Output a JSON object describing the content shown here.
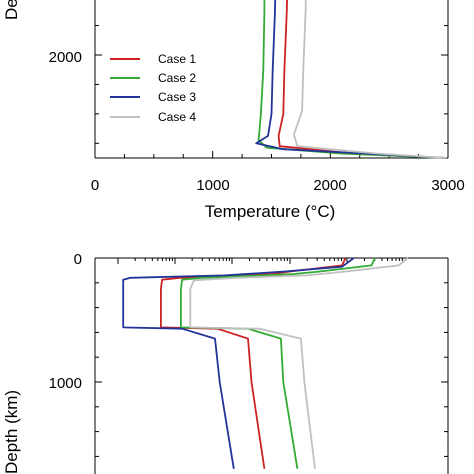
{
  "colors": {
    "case1": "#cc2222",
    "case2": "#33aa33",
    "case3": "#223399",
    "case4": "#c0c0c0"
  },
  "chart_data": [
    {
      "type": "line",
      "panel": "top",
      "xlabel": "Temperature (°C)",
      "ylabel": "Depth",
      "xlim": [
        0,
        3000
      ],
      "x_ticks": [
        "0",
        "1000",
        "2000",
        "3000"
      ],
      "y_ticks": [
        "2000"
      ],
      "legend_position": "center-left",
      "series": [
        {
          "name": "Case 1",
          "color_key": "case1",
          "points": [
            [
              1640,
              2920
            ],
            [
              1640,
              2700
            ],
            [
              1630,
              2300
            ],
            [
              1610,
              1900
            ],
            [
              1600,
              1600
            ],
            [
              1560,
              1450
            ],
            [
              1570,
              1380
            ],
            [
              2200,
              1330
            ],
            [
              2990,
              1300
            ]
          ]
        },
        {
          "name": "Case 2",
          "color_key": "case2",
          "points": [
            [
              1440,
              2920
            ],
            [
              1440,
              2700
            ],
            [
              1440,
              2300
            ],
            [
              1430,
              1900
            ],
            [
              1410,
              1600
            ],
            [
              1390,
              1420
            ],
            [
              1460,
              1370
            ],
            [
              2100,
              1330
            ],
            [
              2990,
              1300
            ]
          ]
        },
        {
          "name": "Case 3",
          "color_key": "case3",
          "points": [
            [
              1540,
              2920
            ],
            [
              1540,
              2700
            ],
            [
              1530,
              2300
            ],
            [
              1510,
              1900
            ],
            [
              1500,
              1600
            ],
            [
              1470,
              1450
            ],
            [
              1370,
              1400
            ],
            [
              1600,
              1360
            ],
            [
              2990,
              1300
            ]
          ]
        },
        {
          "name": "Case 4",
          "color_key": "case4",
          "points": [
            [
              1800,
              2920
            ],
            [
              1800,
              2700
            ],
            [
              1790,
              2300
            ],
            [
              1770,
              1900
            ],
            [
              1760,
              1620
            ],
            [
              1690,
              1460
            ],
            [
              1720,
              1380
            ],
            [
              2400,
              1330
            ],
            [
              2990,
              1300
            ]
          ]
        }
      ]
    },
    {
      "type": "line",
      "panel": "bottom",
      "xlabel": "",
      "ylabel": "Depth (km)",
      "ylim": [
        0,
        1700
      ],
      "y_ticks": [
        "0",
        "1000"
      ],
      "series": [
        {
          "name": "Case 1",
          "color_key": "case1",
          "points": [
            [
              2130,
              0
            ],
            [
              2100,
              60
            ],
            [
              1650,
              110
            ],
            [
              1500,
              130
            ],
            [
              720,
              160
            ],
            [
              570,
              175
            ],
            [
              560,
              250
            ],
            [
              560,
              560
            ],
            [
              1040,
              570
            ],
            [
              1300,
              650
            ],
            [
              1330,
              1000
            ],
            [
              1440,
              1700
            ]
          ]
        },
        {
          "name": "Case 2",
          "color_key": "case2",
          "points": [
            [
              2380,
              0
            ],
            [
              2350,
              60
            ],
            [
              1900,
              110
            ],
            [
              1680,
              130
            ],
            [
              900,
              160
            ],
            [
              740,
              175
            ],
            [
              730,
              250
            ],
            [
              730,
              560
            ],
            [
              1300,
              570
            ],
            [
              1580,
              650
            ],
            [
              1600,
              1000
            ],
            [
              1720,
              1700
            ]
          ]
        },
        {
          "name": "Case 3",
          "color_key": "case3",
          "points": [
            [
              2200,
              0
            ],
            [
              2100,
              70
            ],
            [
              1600,
              110
            ],
            [
              1100,
              140
            ],
            [
              300,
              160
            ],
            [
              240,
              175
            ],
            [
              240,
              250
            ],
            [
              240,
              560
            ],
            [
              740,
              570
            ],
            [
              1020,
              650
            ],
            [
              1060,
              1000
            ],
            [
              1180,
              1700
            ]
          ]
        },
        {
          "name": "Case 4",
          "color_key": "case4",
          "points": [
            [
              2660,
              0
            ],
            [
              2580,
              60
            ],
            [
              2120,
              110
            ],
            [
              1800,
              140
            ],
            [
              1200,
              160
            ],
            [
              840,
              180
            ],
            [
              810,
              250
            ],
            [
              810,
              560
            ],
            [
              1400,
              570
            ],
            [
              1750,
              650
            ],
            [
              1780,
              1000
            ],
            [
              1870,
              1700
            ]
          ]
        }
      ]
    }
  ]
}
